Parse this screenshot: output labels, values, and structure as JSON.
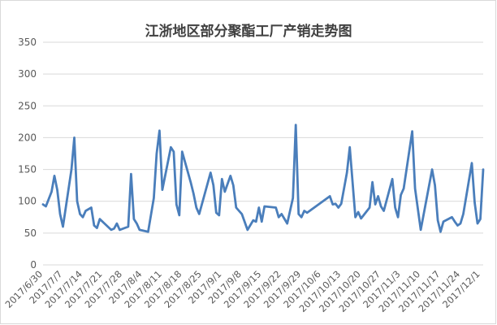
{
  "chart_data": {
    "type": "line",
    "title": "江浙地区部分聚酯工厂产销走势图",
    "xlabel": "",
    "ylabel": "",
    "ylim": [
      0,
      350
    ],
    "yticks": [
      0,
      50,
      100,
      150,
      200,
      250,
      300,
      350
    ],
    "grid": "horizontal",
    "legend": "none",
    "x_tick_labels": [
      "2017/6/30",
      "2017/7/7",
      "2017/7/14",
      "2017/7/21",
      "2017/7/28",
      "2017/8/4",
      "2017/8/11",
      "2017/8/18",
      "2017/8/25",
      "2017/9/1",
      "2017/9/8",
      "2017/9/15",
      "2017/9/22",
      "2017/9/29",
      "2017/10/6",
      "2017/10/13",
      "2017/10/20",
      "2017/10/27",
      "2017/11/3",
      "2017/11/10",
      "2017/11/17",
      "2017/11/24",
      "2017/12/1"
    ],
    "series": [
      {
        "color": "#4a7ebb",
        "points": [
          [
            "2017-06-30",
            95
          ],
          [
            "2017-07-01",
            92
          ],
          [
            "2017-07-03",
            115
          ],
          [
            "2017-07-04",
            140
          ],
          [
            "2017-07-05",
            118
          ],
          [
            "2017-07-06",
            80
          ],
          [
            "2017-07-07",
            60
          ],
          [
            "2017-07-10",
            150
          ],
          [
            "2017-07-11",
            200
          ],
          [
            "2017-07-12",
            100
          ],
          [
            "2017-07-13",
            80
          ],
          [
            "2017-07-14",
            75
          ],
          [
            "2017-07-15",
            85
          ],
          [
            "2017-07-17",
            90
          ],
          [
            "2017-07-18",
            62
          ],
          [
            "2017-07-19",
            58
          ],
          [
            "2017-07-20",
            72
          ],
          [
            "2017-07-24",
            55
          ],
          [
            "2017-07-25",
            57
          ],
          [
            "2017-07-26",
            65
          ],
          [
            "2017-07-27",
            55
          ],
          [
            "2017-07-30",
            60
          ],
          [
            "2017-07-31",
            143
          ],
          [
            "2017-08-01",
            72
          ],
          [
            "2017-08-02",
            65
          ],
          [
            "2017-08-03",
            55
          ],
          [
            "2017-08-06",
            52
          ],
          [
            "2017-08-08",
            105
          ],
          [
            "2017-08-09",
            175
          ],
          [
            "2017-08-10",
            211
          ],
          [
            "2017-08-11",
            118
          ],
          [
            "2017-08-14",
            185
          ],
          [
            "2017-08-15",
            178
          ],
          [
            "2017-08-16",
            95
          ],
          [
            "2017-08-17",
            78
          ],
          [
            "2017-08-18",
            178
          ],
          [
            "2017-08-21",
            130
          ],
          [
            "2017-08-22",
            112
          ],
          [
            "2017-08-23",
            90
          ],
          [
            "2017-08-24",
            80
          ],
          [
            "2017-08-28",
            145
          ],
          [
            "2017-08-29",
            125
          ],
          [
            "2017-08-30",
            82
          ],
          [
            "2017-08-31",
            78
          ],
          [
            "2017-09-01",
            135
          ],
          [
            "2017-09-02",
            115
          ],
          [
            "2017-09-04",
            140
          ],
          [
            "2017-09-05",
            125
          ],
          [
            "2017-09-06",
            90
          ],
          [
            "2017-09-07",
            85
          ],
          [
            "2017-09-08",
            80
          ],
          [
            "2017-09-10",
            55
          ],
          [
            "2017-09-12",
            70
          ],
          [
            "2017-09-13",
            68
          ],
          [
            "2017-09-14",
            90
          ],
          [
            "2017-09-15",
            68
          ],
          [
            "2017-09-16",
            92
          ],
          [
            "2017-09-20",
            90
          ],
          [
            "2017-09-21",
            75
          ],
          [
            "2017-09-22",
            80
          ],
          [
            "2017-09-24",
            65
          ],
          [
            "2017-09-26",
            105
          ],
          [
            "2017-09-27",
            220
          ],
          [
            "2017-09-28",
            80
          ],
          [
            "2017-09-29",
            75
          ],
          [
            "2017-09-30",
            85
          ],
          [
            "2017-10-01",
            82
          ],
          [
            "2017-10-09",
            108
          ],
          [
            "2017-10-10",
            95
          ],
          [
            "2017-10-11",
            96
          ],
          [
            "2017-10-12",
            90
          ],
          [
            "2017-10-13",
            96
          ],
          [
            "2017-10-15",
            145
          ],
          [
            "2017-10-16",
            185
          ],
          [
            "2017-10-18",
            75
          ],
          [
            "2017-10-19",
            83
          ],
          [
            "2017-10-20",
            73
          ],
          [
            "2017-10-23",
            90
          ],
          [
            "2017-10-24",
            130
          ],
          [
            "2017-10-25",
            95
          ],
          [
            "2017-10-26",
            108
          ],
          [
            "2017-10-27",
            92
          ],
          [
            "2017-10-28",
            85
          ],
          [
            "2017-10-31",
            135
          ],
          [
            "2017-11-01",
            90
          ],
          [
            "2017-11-02",
            75
          ],
          [
            "2017-11-03",
            110
          ],
          [
            "2017-11-04",
            120
          ],
          [
            "2017-11-07",
            210
          ],
          [
            "2017-11-08",
            120
          ],
          [
            "2017-11-10",
            55
          ],
          [
            "2017-11-14",
            150
          ],
          [
            "2017-11-15",
            125
          ],
          [
            "2017-11-16",
            70
          ],
          [
            "2017-11-17",
            52
          ],
          [
            "2017-11-18",
            68
          ],
          [
            "2017-11-21",
            75
          ],
          [
            "2017-11-22",
            68
          ],
          [
            "2017-11-23",
            62
          ],
          [
            "2017-11-24",
            65
          ],
          [
            "2017-11-25",
            80
          ],
          [
            "2017-11-28",
            160
          ],
          [
            "2017-11-29",
            98
          ],
          [
            "2017-11-30",
            65
          ],
          [
            "2017-12-01",
            72
          ],
          [
            "2017-12-02",
            150
          ]
        ]
      }
    ]
  }
}
